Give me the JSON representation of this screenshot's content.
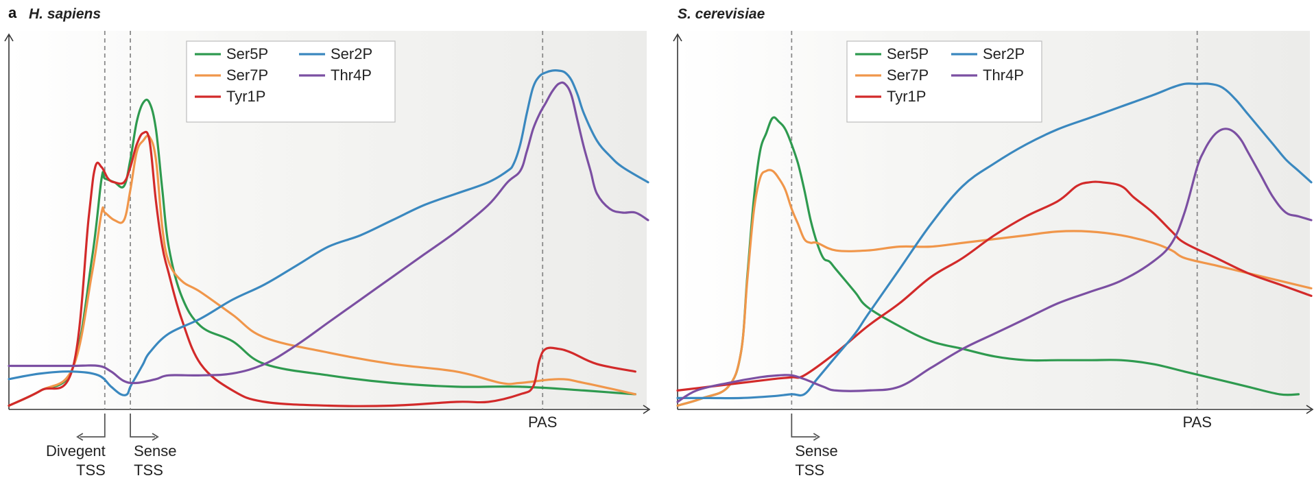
{
  "panel_letter": "a",
  "colors": {
    "Ser5P": "#2e9a4f",
    "Ser7P": "#f0964a",
    "Tyr1P": "#d22a2a",
    "Ser2P": "#3a88bf",
    "Thr4P": "#7b4fa2"
  },
  "chart_data": [
    {
      "type": "line",
      "title": "H. sapiens",
      "xlabel": "",
      "ylabel": "",
      "xlim": [
        0,
        100
      ],
      "ylim": [
        0,
        100
      ],
      "grid": false,
      "legend_position": "top-center",
      "legend_order": [
        "Ser5P",
        "Ser2P",
        "Ser7P",
        "Thr4P",
        "Tyr1P"
      ],
      "markers": [
        {
          "name": "Divegent TSS",
          "lines": [
            "Divegent",
            "TSS"
          ],
          "x": 15,
          "arrow": "left"
        },
        {
          "name": "Sense TSS",
          "lines": [
            "Sense",
            "TSS"
          ],
          "x": 19,
          "arrow": "right"
        },
        {
          "name": "PAS",
          "lines": [
            "PAS"
          ],
          "x": 83.5,
          "arrow": "none"
        }
      ],
      "series": [
        {
          "name": "Ser5P",
          "x": [
            0,
            5,
            10,
            13,
            14.5,
            15,
            16.5,
            18,
            19,
            20,
            21,
            22,
            23,
            24,
            25,
            27,
            30,
            35,
            40,
            50,
            60,
            70,
            80,
            90,
            98
          ],
          "y": [
            1,
            5,
            11,
            40,
            61,
            61,
            60,
            59,
            66,
            76,
            81,
            81,
            74,
            58,
            43,
            30,
            22,
            18,
            12,
            9,
            7,
            6,
            6,
            5,
            4
          ]
        },
        {
          "name": "Ser7P",
          "x": [
            0,
            5,
            10,
            13,
            14.5,
            15,
            16.5,
            18,
            19,
            20,
            21,
            22,
            23,
            24,
            25,
            27,
            30,
            35,
            40,
            50,
            60,
            70,
            77,
            80,
            86,
            90,
            98
          ],
          "y": [
            1,
            5,
            11,
            36,
            52,
            52,
            50,
            50,
            58,
            68,
            71,
            72,
            66,
            48,
            39,
            34,
            31,
            25,
            19,
            15,
            12,
            10,
            7,
            7,
            8,
            7,
            4
          ]
        },
        {
          "name": "Tyr1P",
          "x": [
            0,
            5,
            10,
            12.5,
            13.5,
            14.5,
            15.5,
            16.5,
            18,
            19,
            20,
            21,
            22,
            23,
            24,
            25,
            27,
            30,
            35,
            40,
            50,
            60,
            70,
            75,
            80,
            82,
            83,
            84,
            86,
            88,
            92,
            98
          ],
          "y": [
            1,
            5,
            11,
            51,
            64,
            64,
            61,
            60,
            60,
            64,
            70,
            73,
            71,
            55,
            43,
            36,
            24,
            12,
            5,
            2,
            1,
            1,
            2,
            2,
            4,
            6,
            13,
            16,
            16,
            15,
            12,
            10
          ]
        },
        {
          "name": "Ser2P",
          "x": [
            0,
            5,
            10,
            14,
            16,
            17.5,
            18.5,
            19,
            20,
            21,
            22,
            25,
            30,
            35,
            40,
            45,
            50,
            55,
            60,
            65,
            70,
            75,
            78,
            79,
            80,
            81,
            82,
            83,
            84,
            85,
            86,
            87,
            88,
            89,
            90,
            92,
            94,
            96,
            100
          ],
          "y": [
            8,
            9.5,
            10,
            9,
            6,
            4,
            4,
            6,
            9,
            12,
            15,
            20,
            24,
            29,
            33,
            38,
            43,
            46,
            50,
            54,
            57,
            60,
            63,
            65,
            70,
            78,
            85,
            88,
            89,
            89.5,
            89.5,
            89,
            87,
            83,
            78,
            71,
            67,
            64,
            60
          ]
        },
        {
          "name": "Thr4P",
          "x": [
            0,
            5,
            10,
            14,
            16,
            18,
            20,
            23,
            25,
            30,
            35,
            40,
            45,
            50,
            55,
            60,
            65,
            70,
            75,
            78,
            80,
            81,
            82,
            83,
            84,
            85,
            86,
            87,
            88,
            89,
            90,
            91,
            92,
            94,
            96,
            98,
            100
          ],
          "y": [
            11.5,
            11.5,
            11.5,
            11.5,
            10,
            7.5,
            7,
            8,
            9,
            9,
            9.5,
            12,
            17,
            23,
            29,
            35,
            41,
            47,
            54,
            60,
            63,
            68,
            74,
            78,
            81,
            84,
            86,
            86,
            83,
            76,
            69,
            63,
            57,
            53,
            52,
            52,
            50
          ]
        }
      ]
    },
    {
      "type": "line",
      "title": "S. cerevisiae",
      "xlabel": "",
      "ylabel": "",
      "xlim": [
        0,
        100
      ],
      "ylim": [
        0,
        100
      ],
      "grid": false,
      "legend_position": "top-center",
      "legend_order": [
        "Ser5P",
        "Ser2P",
        "Ser7P",
        "Thr4P",
        "Tyr1P"
      ],
      "markers": [
        {
          "name": "Sense TSS",
          "lines": [
            "Sense",
            "TSS"
          ],
          "x": 18,
          "arrow": "right"
        },
        {
          "name": "PAS",
          "lines": [
            "PAS"
          ],
          "x": 82,
          "arrow": "none"
        }
      ],
      "series": [
        {
          "name": "Ser5P",
          "x": [
            0,
            4,
            8,
            10,
            11,
            12,
            13,
            14,
            15,
            16,
            17,
            18,
            19,
            20,
            21,
            22,
            23,
            24,
            25,
            28,
            30,
            35,
            40,
            45,
            50,
            55,
            60,
            65,
            70,
            75,
            80,
            85,
            90,
            95,
            98
          ],
          "y": [
            1,
            3,
            6,
            15,
            35,
            55,
            68,
            73,
            77,
            76,
            74,
            70,
            65,
            58,
            50,
            44,
            40,
            39,
            37,
            31,
            27,
            22,
            18,
            16,
            14,
            13,
            13,
            13,
            13,
            12,
            10,
            8,
            6,
            4,
            4
          ]
        },
        {
          "name": "Ser7P",
          "x": [
            0,
            4,
            8,
            10,
            11,
            12,
            13,
            14,
            15,
            16,
            17,
            18,
            19,
            20,
            21,
            22,
            25,
            30,
            35,
            40,
            45,
            50,
            55,
            60,
            65,
            70,
            75,
            78,
            80,
            85,
            90,
            95,
            100
          ],
          "y": [
            1,
            3,
            6,
            15,
            34,
            52,
            61,
            63,
            63,
            61,
            58,
            53,
            49,
            45,
            44,
            44,
            42,
            42,
            43,
            43,
            44,
            45,
            46,
            47,
            47,
            46,
            44,
            42,
            40,
            38,
            36,
            34,
            32
          ]
        },
        {
          "name": "Tyr1P",
          "x": [
            0,
            5,
            10,
            15,
            18,
            20,
            25,
            30,
            35,
            40,
            45,
            50,
            55,
            60,
            63,
            65,
            67,
            70,
            72,
            75,
            78,
            80,
            85,
            90,
            95,
            100
          ],
          "y": [
            5,
            6,
            7,
            8,
            8.5,
            9,
            15,
            22,
            28,
            35,
            40,
            46,
            51,
            55,
            59,
            60,
            60,
            59,
            56,
            52,
            47,
            44,
            40,
            36,
            33,
            30
          ]
        },
        {
          "name": "Ser2P",
          "x": [
            0,
            5,
            10,
            15,
            18,
            20,
            22,
            25,
            28,
            30,
            35,
            40,
            45,
            50,
            55,
            60,
            65,
            70,
            75,
            78,
            80,
            82,
            84,
            86,
            88,
            90,
            92,
            94,
            96,
            98,
            100
          ],
          "y": [
            3,
            3,
            3,
            3.5,
            4,
            4,
            8,
            14,
            20,
            25,
            37,
            49,
            59,
            65,
            70,
            74,
            77,
            80,
            83,
            85,
            86,
            86,
            86,
            85,
            82,
            78,
            74,
            70,
            66,
            63,
            60
          ]
        },
        {
          "name": "Thr4P",
          "x": [
            0,
            3,
            8,
            13,
            16,
            18,
            20,
            23,
            25,
            30,
            35,
            40,
            45,
            50,
            55,
            60,
            65,
            70,
            75,
            78,
            80,
            82,
            83,
            84,
            85,
            86,
            87,
            88,
            89,
            90,
            92,
            94,
            96,
            98,
            100
          ],
          "y": [
            2,
            5,
            7,
            8.5,
            9,
            9,
            8,
            6,
            5,
            5,
            6,
            11,
            16,
            20,
            24,
            28,
            31,
            34,
            39,
            44,
            52,
            64,
            68,
            71,
            73,
            74,
            74,
            73,
            71,
            68,
            62,
            56,
            52,
            51,
            50
          ]
        }
      ]
    }
  ]
}
